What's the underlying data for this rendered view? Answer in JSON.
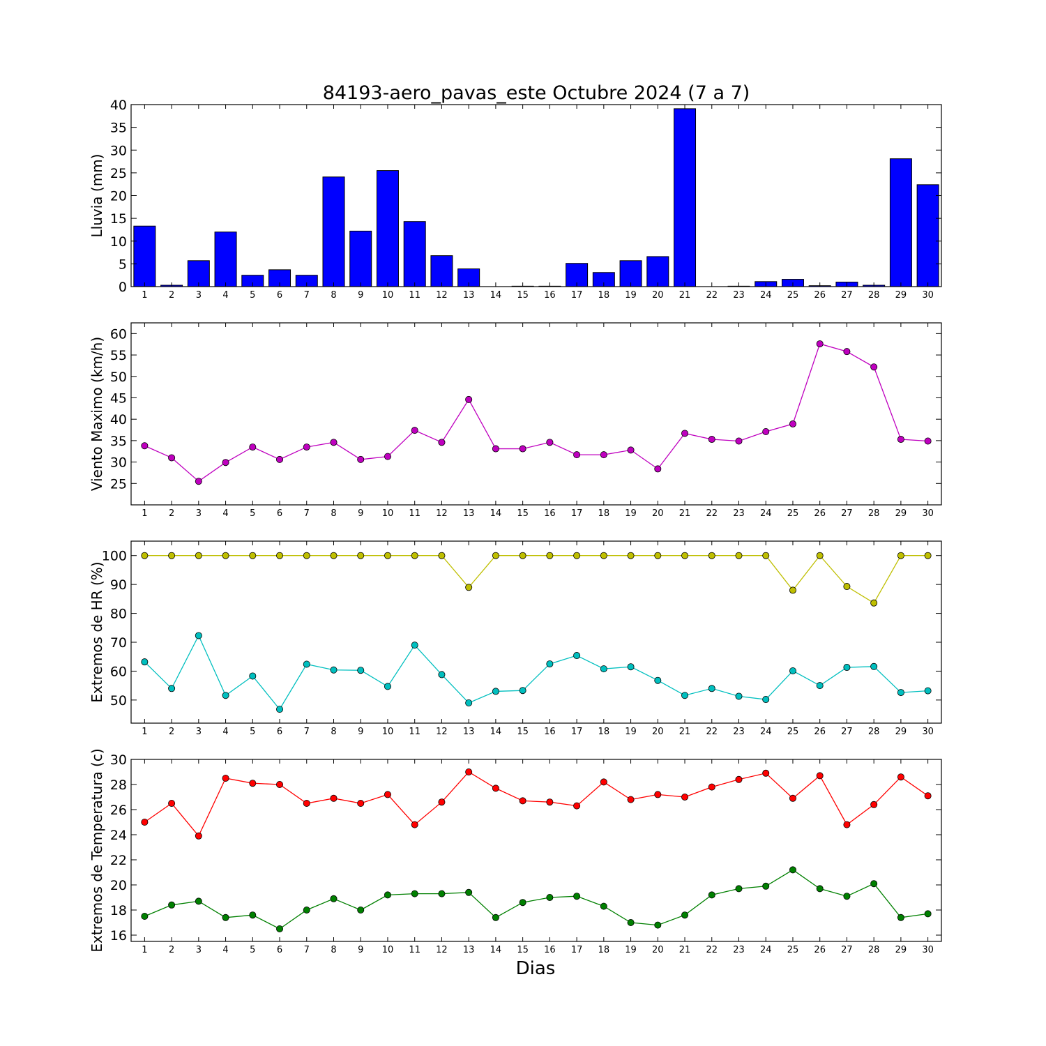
{
  "chart_data": {
    "type": "multi-panel",
    "title": "84193-aero_pavas_este Octubre 2024  (7 a 7)",
    "xlabel": "Dias",
    "x": [
      1,
      2,
      3,
      4,
      5,
      6,
      7,
      8,
      9,
      10,
      11,
      12,
      13,
      14,
      15,
      16,
      17,
      18,
      19,
      20,
      21,
      22,
      23,
      24,
      25,
      26,
      27,
      28,
      29,
      30
    ],
    "panels": [
      {
        "type": "bar",
        "ylabel": "Lluvia (mm)",
        "ylim": [
          0,
          40
        ],
        "yticks": [
          0,
          5,
          10,
          15,
          20,
          25,
          30,
          35,
          40
        ],
        "series": [
          {
            "color": "#0000ff",
            "values": [
              13.3,
              0.3,
              5.7,
              12.0,
              2.5,
              3.7,
              2.5,
              24.1,
              12.2,
              25.5,
              14.3,
              6.8,
              3.9,
              0,
              0.1,
              0.1,
              5.1,
              3.1,
              5.7,
              6.6,
              39.1,
              0,
              0.1,
              1.1,
              1.6,
              0.2,
              1.0,
              0.3,
              28.1,
              22.4
            ]
          }
        ]
      },
      {
        "type": "line",
        "ylabel": "Viento Maximo (km/h)",
        "ylim": [
          20,
          62.5
        ],
        "yticks": [
          25,
          30,
          35,
          40,
          45,
          50,
          55,
          60
        ],
        "series": [
          {
            "color": "#bf00bf",
            "values": [
              33.8,
              31.0,
              25.5,
              29.9,
              33.5,
              30.6,
              33.5,
              34.6,
              30.6,
              31.3,
              37.4,
              34.6,
              44.6,
              33.1,
              33.1,
              34.6,
              31.7,
              31.7,
              32.8,
              28.4,
              36.7,
              35.3,
              34.9,
              37.1,
              38.9,
              57.6,
              55.8,
              52.2,
              35.3,
              34.9
            ]
          }
        ]
      },
      {
        "type": "line",
        "ylabel": "Extremos de HR (%)",
        "ylim": [
          42,
          105
        ],
        "yticks": [
          50,
          60,
          70,
          80,
          90,
          100
        ],
        "series": [
          {
            "color": "#bfbf00",
            "values": [
              100,
              100,
              100,
              100,
              100,
              100,
              100,
              100,
              100,
              100,
              100,
              100,
              89,
              100,
              100,
              100,
              100,
              100,
              100,
              100,
              100,
              100,
              100,
              100,
              88,
              100,
              89.3,
              83.6,
              100,
              100
            ]
          },
          {
            "color": "#00bfbf",
            "values": [
              63.2,
              54,
              72.3,
              51.6,
              58.3,
              46.8,
              62.4,
              60.4,
              60.3,
              54.7,
              69.0,
              58.8,
              49,
              53,
              53.3,
              62.5,
              65.4,
              60.8,
              61.5,
              56.8,
              51.6,
              54,
              51.3,
              50.2,
              60.1,
              55,
              61.3,
              61.6,
              52.6,
              53.2
            ]
          }
        ]
      },
      {
        "type": "line",
        "ylabel": "Extremos de Temperatura (c)",
        "ylim": [
          15.5,
          30
        ],
        "yticks": [
          16,
          18,
          20,
          22,
          24,
          26,
          28,
          30
        ],
        "series": [
          {
            "color": "#ff0000",
            "values": [
              25.0,
              26.5,
              23.9,
              28.5,
              28.1,
              28.0,
              26.5,
              26.9,
              26.5,
              27.2,
              24.8,
              26.6,
              29.0,
              27.7,
              26.7,
              26.6,
              26.3,
              28.2,
              26.8,
              27.2,
              27.0,
              27.8,
              28.4,
              28.9,
              26.9,
              28.7,
              24.8,
              26.4,
              28.6,
              27.1
            ]
          },
          {
            "color": "#008000",
            "values": [
              17.5,
              18.4,
              18.7,
              17.4,
              17.6,
              16.5,
              18.0,
              18.9,
              18.0,
              19.2,
              19.3,
              19.3,
              19.4,
              17.4,
              18.6,
              19.0,
              19.1,
              18.3,
              17.0,
              16.8,
              17.6,
              19.2,
              19.7,
              19.9,
              21.2,
              19.7,
              19.1,
              20.1,
              17.4,
              17.7
            ]
          }
        ]
      }
    ]
  }
}
